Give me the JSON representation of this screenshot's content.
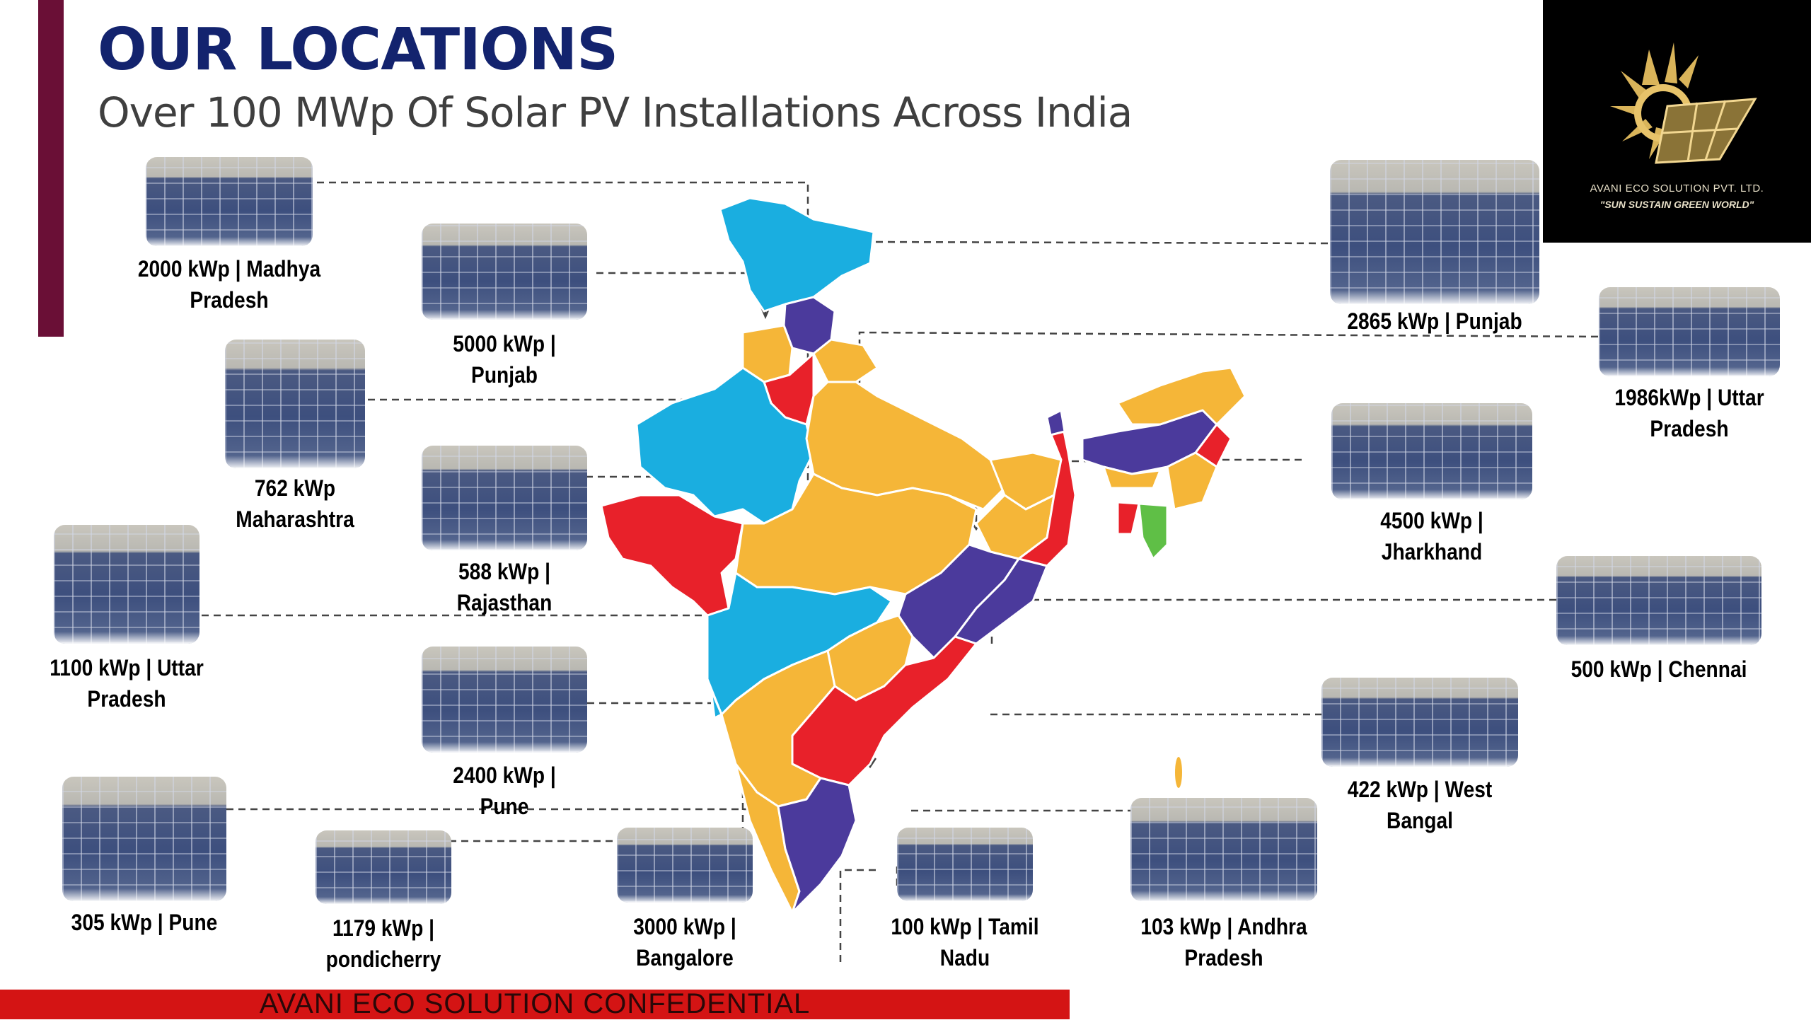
{
  "header": {
    "title": "OUR LOCATIONS",
    "subtitle": "Over 100 MWp Of Solar PV Installations Across India"
  },
  "logo": {
    "company": "AVANI ECO SOLUTION PVT. LTD.",
    "tagline": "\"SUN SUSTAIN GREEN WORLD\"",
    "icon": "sun-solar-panel-logo"
  },
  "installations": [
    {
      "id": "mp-2000",
      "caption": "2000 kWp | Madhya\nPradesh"
    },
    {
      "id": "punjab-5000",
      "caption": "5000 kWp   |\nPunjab"
    },
    {
      "id": "maha-762",
      "caption": "762 kWp\nMaharashtra"
    },
    {
      "id": "raj-588",
      "caption": "588 kWp |\nRajasthan"
    },
    {
      "id": "up-1100",
      "caption": "1100 kWp | Uttar\nPradesh"
    },
    {
      "id": "pune-2400",
      "caption": "2400 kWp   |\nPune"
    },
    {
      "id": "pune-305",
      "caption": "305 kWp    |   Pune"
    },
    {
      "id": "pondi-1179",
      "caption": "1179 kWp |\npondicherry"
    },
    {
      "id": "blr-3000",
      "caption": "3000 kWp |\nBangalore"
    },
    {
      "id": "tn-100",
      "caption": "100 kWp | Tamil\nNadu"
    },
    {
      "id": "ap-103",
      "caption": "103 kWp | Andhra\nPradesh"
    },
    {
      "id": "wb-422",
      "caption": "422 kWp   | West\nBangal"
    },
    {
      "id": "chennai-500",
      "caption": "500 kWp    |    Chennai"
    },
    {
      "id": "jh-4500",
      "caption": "4500 kWp  |\nJharkhand"
    },
    {
      "id": "up-1986",
      "caption": "1986kWp  |  Uttar\nPradesh"
    },
    {
      "id": "punjab-2865",
      "caption": "2865 kWp   |  Punjab"
    }
  ],
  "footer": {
    "text": "AVANI ECO SOLUTION CONFEDENTIAL"
  },
  "colors": {
    "accent_bar": "#6a0f36",
    "title": "#13236e",
    "map_blue": "#1aaee0",
    "map_orange": "#f5b638",
    "map_red": "#e8212a",
    "map_purple": "#4b3a9c",
    "map_green": "#5fbf46",
    "footer_bar": "#d41414"
  }
}
